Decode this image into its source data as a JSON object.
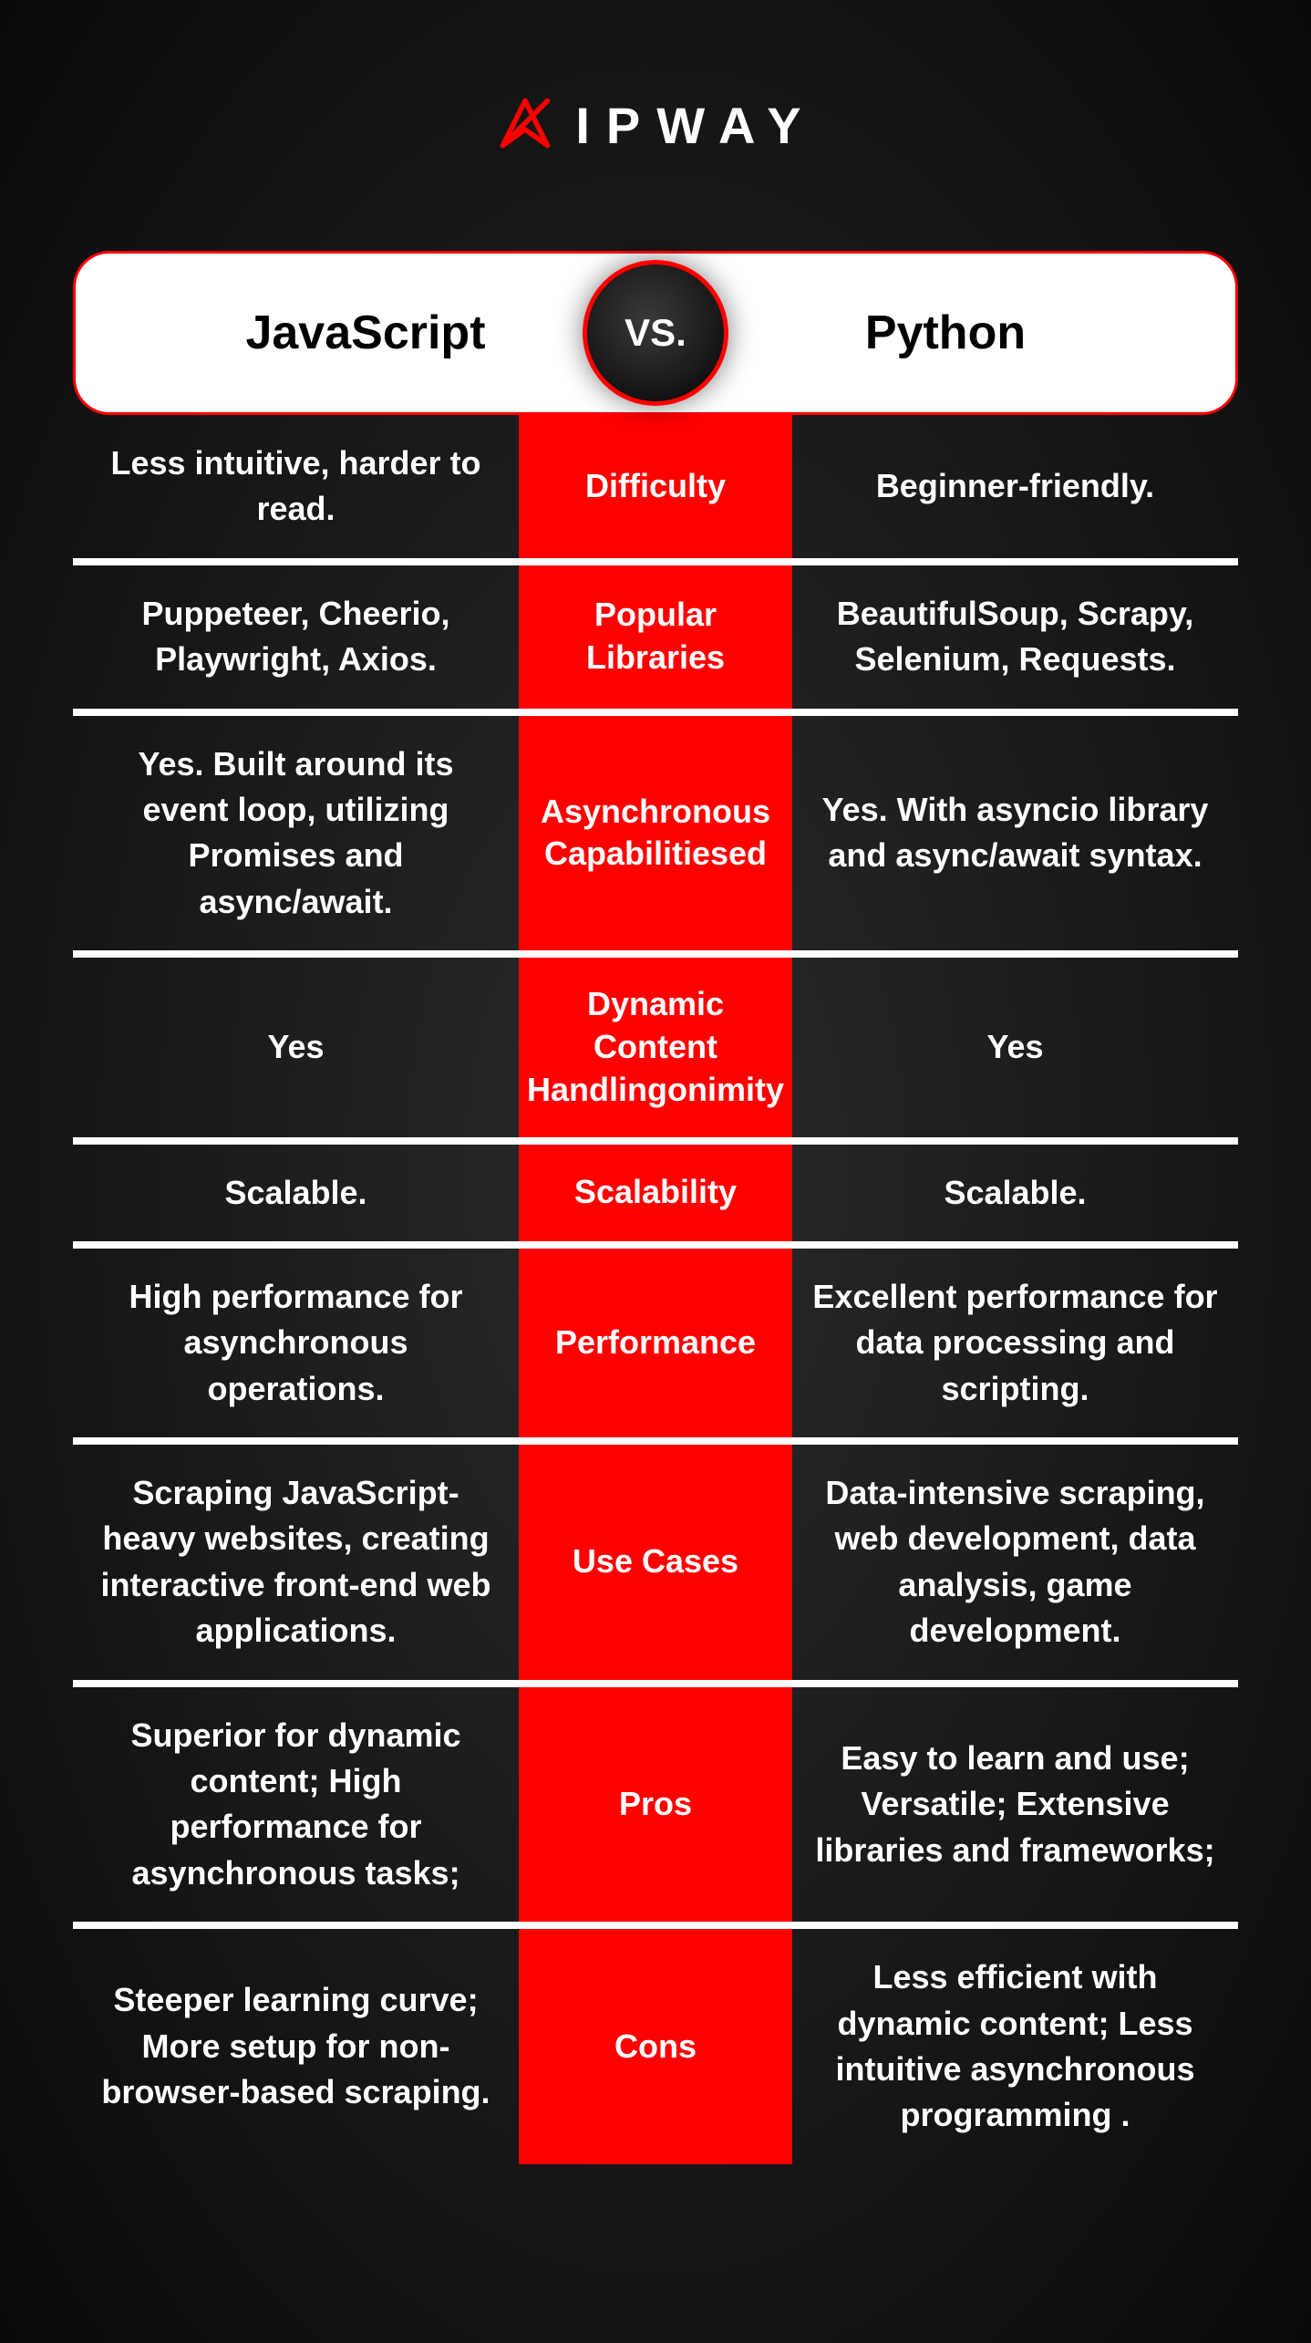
{
  "brand": {
    "name": "IPWAY",
    "logo_color": "#ff0000"
  },
  "header": {
    "left": "JavaScript",
    "right": "Python",
    "vs": "VS."
  },
  "colors": {
    "accent": "#ff0000",
    "bg_dark": "#0a0a0a",
    "bg_mid": "#2a2a2a",
    "text": "#ffffff",
    "divider": "#ffffff"
  },
  "rows": [
    {
      "left": "Less intuitive, harder to read.",
      "mid": "Difficulty",
      "right": "Beginner-friendly."
    },
    {
      "left": "Puppeteer, Cheerio, Playwright, Axios.",
      "mid": "Popular Libraries",
      "right": "BeautifulSoup, Scrapy, Selenium, Requests."
    },
    {
      "left": "Yes. Built around its event loop, utilizing Promises and async/await.",
      "mid": "Asynchronous Capabilitiesed",
      "right": "Yes. With asyncio library and async/await syntax."
    },
    {
      "left": "Yes",
      "mid": "Dynamic Content Handlingonimity",
      "right": "Yes"
    },
    {
      "left": "Scalable.",
      "mid": "Scalability",
      "right": "Scalable."
    },
    {
      "left": "High performance for asynchronous operations.",
      "mid": "Performance",
      "right": "Excellent performance for data processing and scripting."
    },
    {
      "left": "Scraping JavaScript-heavy websites, creating interactive front-end web applications.",
      "mid": "Use Cases",
      "right": "Data-intensive scraping, web development, data analysis, game development."
    },
    {
      "left": "Superior for dynamic content; High performance for asynchronous tasks;",
      "mid": "Pros",
      "right": "Easy to learn and use; Versatile; Extensive libraries and frameworks;"
    },
    {
      "left": "Steeper learning curve; More setup for non-browser-based scraping.",
      "mid": "Cons",
      "right": "Less efficient with dynamic content; Less intuitive asynchronous programming ."
    }
  ]
}
